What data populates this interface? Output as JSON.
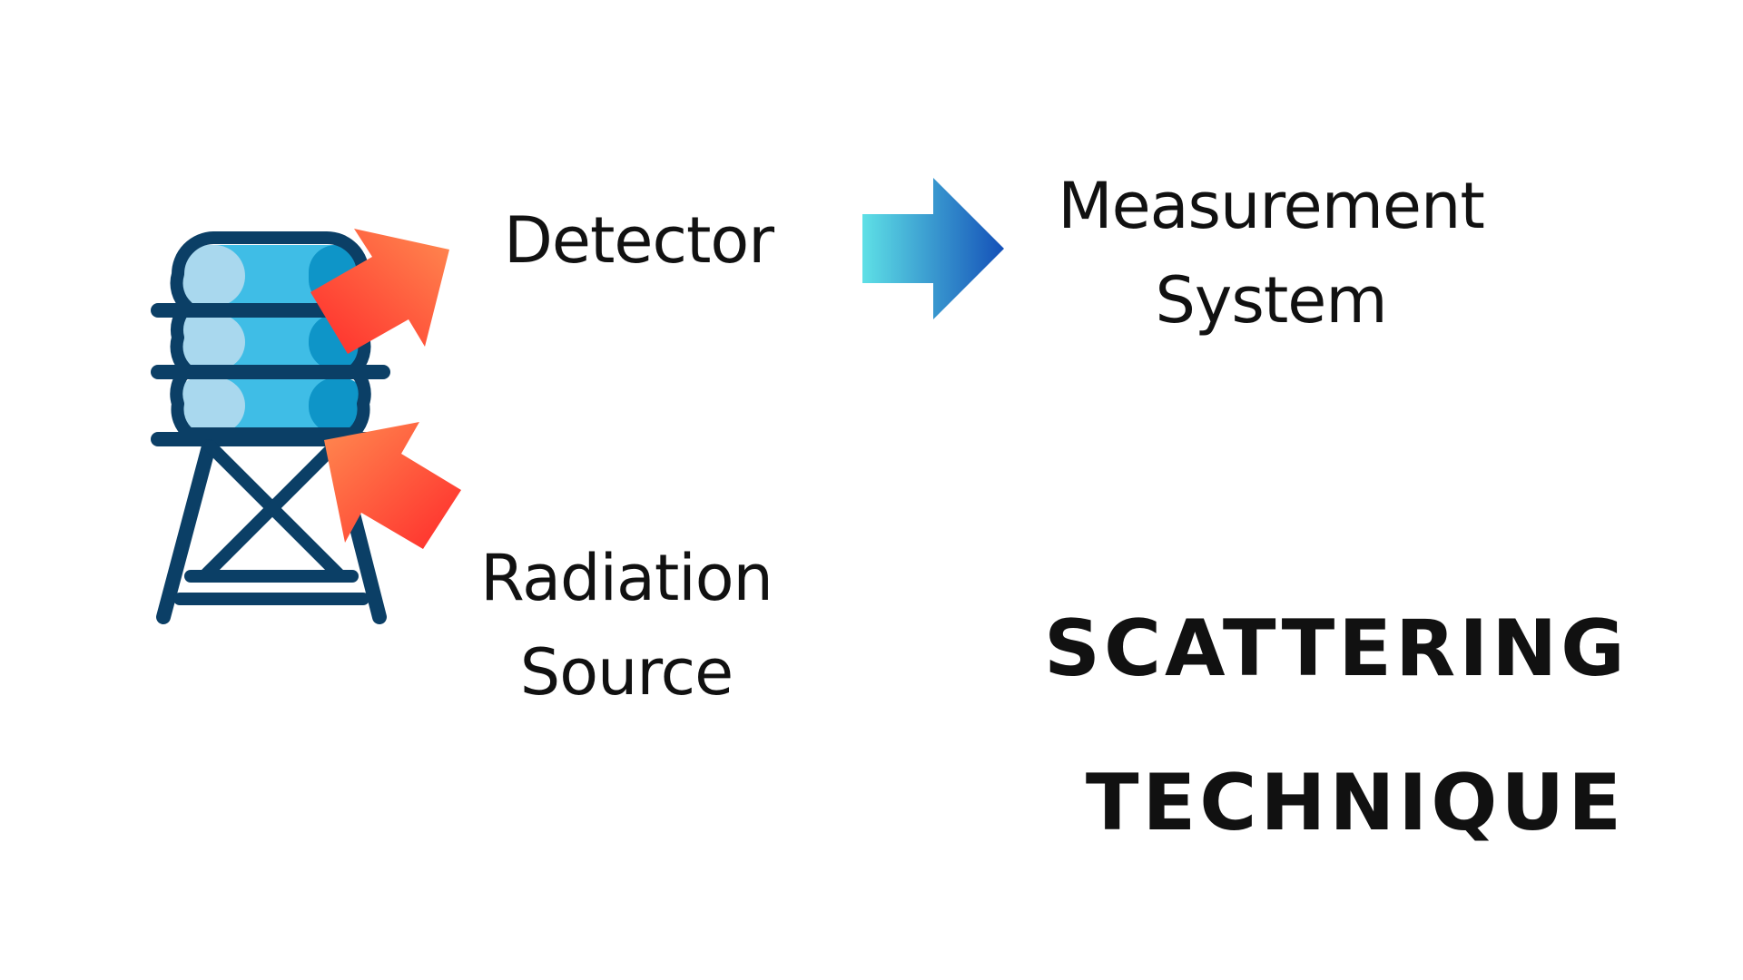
{
  "diagram": {
    "detector_label": "Detector",
    "measurement_label_line1": "Measurement",
    "measurement_label_line2": "System",
    "radiation_label_line1": "Radiation",
    "radiation_label_line2": "Source",
    "title_line1": "SCATTERING",
    "title_line2": "TECHNIQUE"
  },
  "icons": {
    "tower": "water-tower-icon",
    "detector_arrow": "orange-arrow-icon",
    "source_arrow": "orange-arrow-icon",
    "flow_arrow": "blue-right-arrow-icon"
  },
  "colors": {
    "outline": "#0b3f66",
    "tank_light": "#a9d8ee",
    "tank_mid": "#3fbde6",
    "tank_dark": "#0e95c8",
    "arrow_orange_start": "#ff8a50",
    "arrow_orange_end": "#ff2b2b",
    "arrow_blue_start": "#5ee0e6",
    "arrow_blue_end": "#1450b8"
  }
}
